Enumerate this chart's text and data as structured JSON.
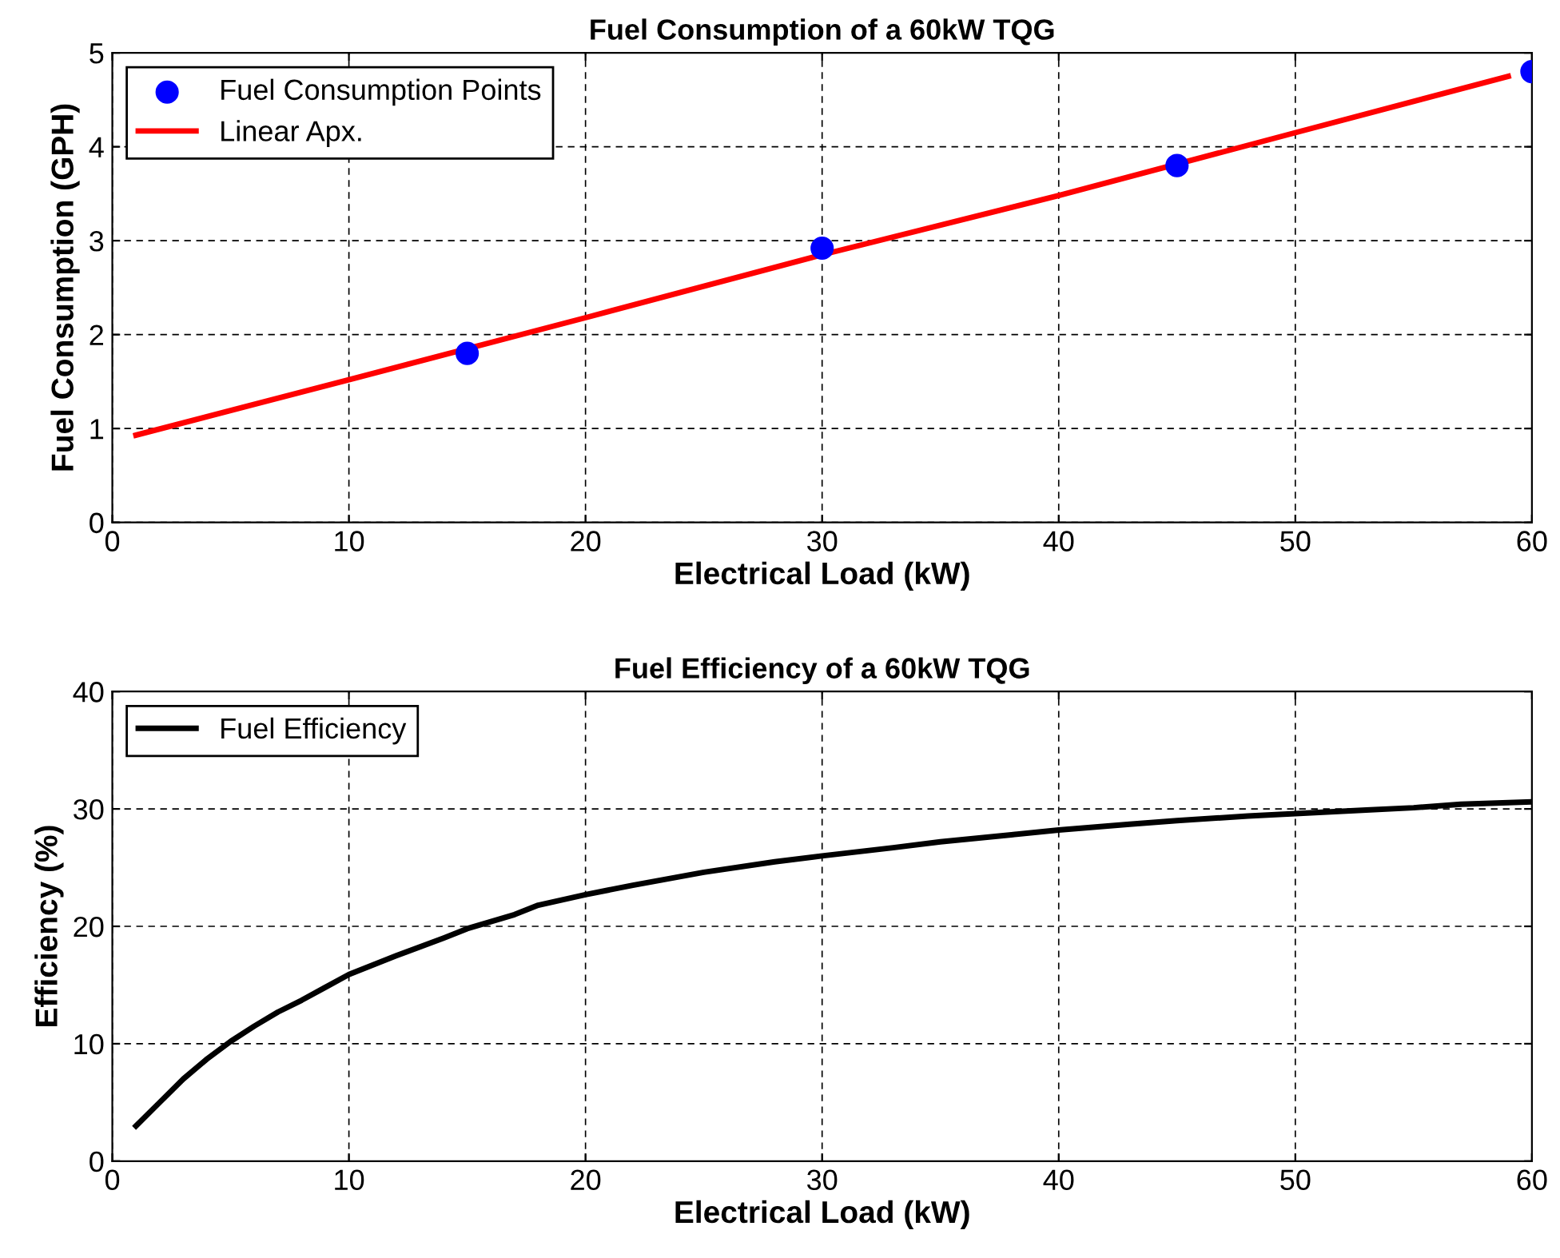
{
  "chart_data": [
    {
      "type": "line",
      "title": "Fuel Consumption of a 60kW TQG",
      "xlabel": "Electrical Load (kW)",
      "ylabel": "Fuel Consumption (GPH)",
      "xlim": [
        0,
        60
      ],
      "xticks": [
        0,
        10,
        20,
        30,
        40,
        50,
        60
      ],
      "ylim": [
        0,
        5
      ],
      "yticks": [
        0,
        1,
        2,
        3,
        4,
        5
      ],
      "grid": true,
      "legend": "top left",
      "series": [
        {
          "name": "Fuel Consumption Points",
          "type": "scatter",
          "marker": "circle",
          "color": "#0000ff",
          "x": [
            15,
            30,
            45,
            60
          ],
          "values": [
            1.8,
            2.92,
            3.8,
            4.8
          ]
        },
        {
          "name": "Linear Apx.",
          "type": "line",
          "color": "#ff0000",
          "x": [
            1,
            10,
            20,
            30,
            40,
            50,
            59
          ],
          "values": [
            0.93,
            1.52,
            2.18,
            2.85,
            3.48,
            4.15,
            4.75
          ]
        }
      ]
    },
    {
      "type": "line",
      "title": "Fuel Efficiency of a 60kW TQG",
      "xlabel": "Electrical Load (kW)",
      "ylabel": "Efficiency (%)",
      "xlim": [
        0,
        60
      ],
      "xticks": [
        0,
        10,
        20,
        30,
        40,
        50,
        60
      ],
      "ylim": [
        0,
        40
      ],
      "yticks": [
        0,
        10,
        20,
        30,
        40
      ],
      "grid": true,
      "legend": "top left",
      "series": [
        {
          "name": "Fuel Efficiency",
          "type": "line",
          "color": "#000000",
          "x": [
            1,
            2,
            3,
            4,
            5,
            6,
            7,
            8,
            9,
            10,
            12,
            14,
            15,
            17,
            18,
            20,
            22,
            25,
            28,
            30,
            33,
            35,
            38,
            40,
            43,
            45,
            48,
            50,
            53,
            55,
            57,
            60
          ],
          "values": [
            3,
            5,
            7,
            8.7,
            10.2,
            11.5,
            12.7,
            13.7,
            14.8,
            15.9,
            17.5,
            19,
            19.8,
            21,
            21.8,
            22.7,
            23.5,
            24.6,
            25.5,
            26,
            26.7,
            27.2,
            27.8,
            28.2,
            28.7,
            29,
            29.4,
            29.6,
            29.9,
            30.1,
            30.4,
            30.6
          ]
        }
      ]
    }
  ]
}
